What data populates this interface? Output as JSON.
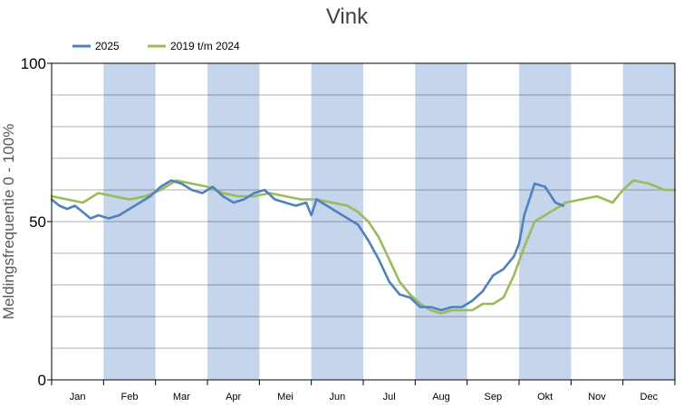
{
  "chart_data": {
    "type": "line",
    "title": "Vink",
    "xlabel": "",
    "ylabel": "Meldingsfrequentie 0 - 100%",
    "ylim": [
      0,
      100
    ],
    "yticks": [
      "0",
      "50",
      "100"
    ],
    "grid": true,
    "legend": "top-left",
    "month_bands": "alternating",
    "colors": {
      "band": "#c5d5eb",
      "grid": "#000000"
    },
    "months": [
      "Jan",
      "Feb",
      "Mar",
      "Apr",
      "Mei",
      "Jun",
      "Jul",
      "Aug",
      "Sep",
      "Okt",
      "Nov",
      "Dec"
    ],
    "series": [
      {
        "name": "2025",
        "color": "#4f81bd",
        "x": [
          0,
          0.15,
          0.3,
          0.45,
          0.6,
          0.75,
          0.9,
          1.1,
          1.3,
          1.5,
          1.7,
          1.9,
          2.1,
          2.3,
          2.5,
          2.7,
          2.9,
          3.1,
          3.3,
          3.5,
          3.7,
          3.9,
          4.1,
          4.3,
          4.5,
          4.7,
          4.9,
          5.0,
          5.1,
          5.3,
          5.5,
          5.7,
          5.9,
          6.1,
          6.3,
          6.5,
          6.7,
          6.9,
          7.1,
          7.3,
          7.5,
          7.7,
          7.9,
          8.1,
          8.3,
          8.5,
          8.7,
          8.9,
          9.0,
          9.1,
          9.3,
          9.5,
          9.7,
          9.85
        ],
        "values": [
          57,
          55,
          54,
          55,
          53,
          51,
          52,
          51,
          52,
          54,
          56,
          58,
          61,
          63,
          62,
          60,
          59,
          61,
          58,
          56,
          57,
          59,
          60,
          57,
          56,
          55,
          56,
          52,
          57,
          55,
          53,
          51,
          49,
          44,
          38,
          31,
          27,
          26,
          23,
          23,
          22,
          23,
          23,
          25,
          28,
          33,
          35,
          39,
          43,
          52,
          62,
          61,
          56,
          55
        ]
      },
      {
        "name": "2019 t/m 2024",
        "color": "#9bbb59",
        "x": [
          0,
          0.3,
          0.6,
          0.9,
          1.2,
          1.5,
          1.8,
          2.1,
          2.4,
          2.7,
          3.0,
          3.3,
          3.6,
          3.9,
          4.2,
          4.5,
          4.8,
          5.1,
          5.4,
          5.7,
          5.9,
          6.1,
          6.3,
          6.5,
          6.7,
          6.9,
          7.1,
          7.3,
          7.5,
          7.7,
          7.9,
          8.1,
          8.3,
          8.5,
          8.7,
          8.9,
          9.1,
          9.3,
          9.5,
          9.7,
          9.9,
          10.2,
          10.5,
          10.8,
          11.0,
          11.2,
          11.5,
          11.8,
          12.0
        ],
        "values": [
          58,
          57,
          56,
          59,
          58,
          57,
          58,
          60,
          63,
          62,
          61,
          59,
          58,
          58,
          59,
          58,
          57,
          57,
          56,
          55,
          53,
          50,
          45,
          38,
          31,
          27,
          24,
          22,
          21,
          22,
          22,
          22,
          24,
          24,
          26,
          33,
          42,
          50,
          52,
          54,
          56,
          57,
          58,
          56,
          60,
          63,
          62,
          60,
          60
        ]
      }
    ]
  }
}
